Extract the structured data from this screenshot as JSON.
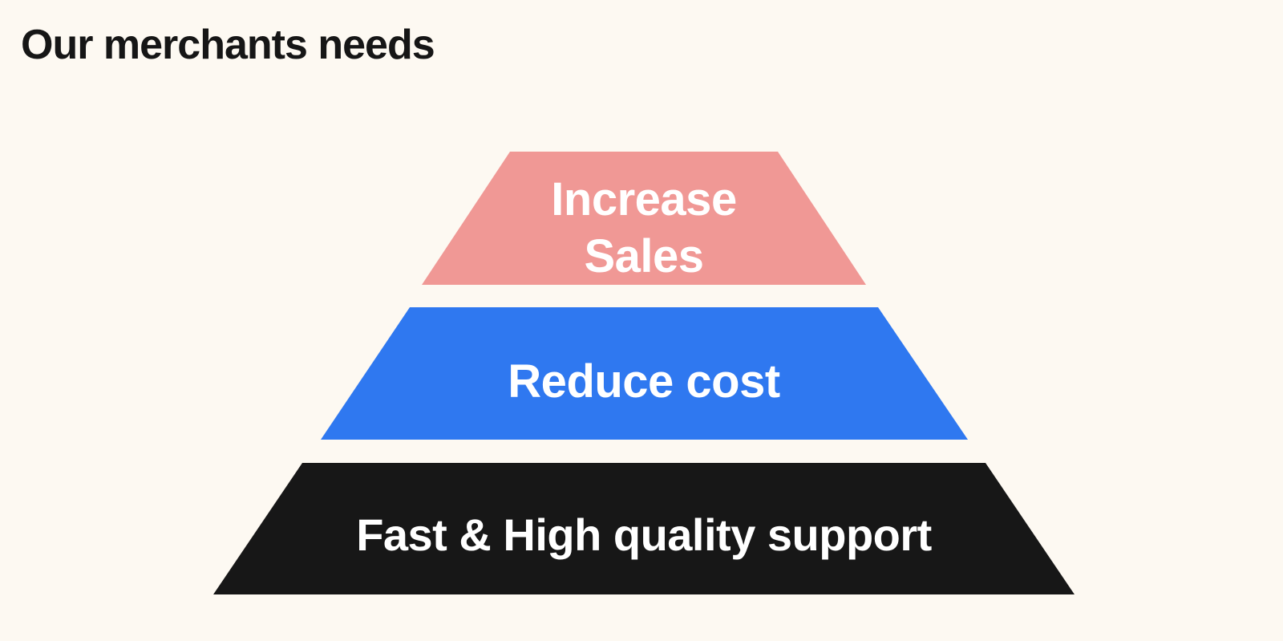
{
  "slide": {
    "title": "Our merchants needs"
  },
  "pyramid": {
    "tiers": [
      {
        "lines": [
          "Increase",
          "Sales"
        ],
        "color": "#f09895"
      },
      {
        "lines": [
          "Reduce cost"
        ],
        "color": "#2f78f0"
      },
      {
        "lines": [
          "Fast & High quality support"
        ],
        "color": "#171717"
      }
    ]
  }
}
